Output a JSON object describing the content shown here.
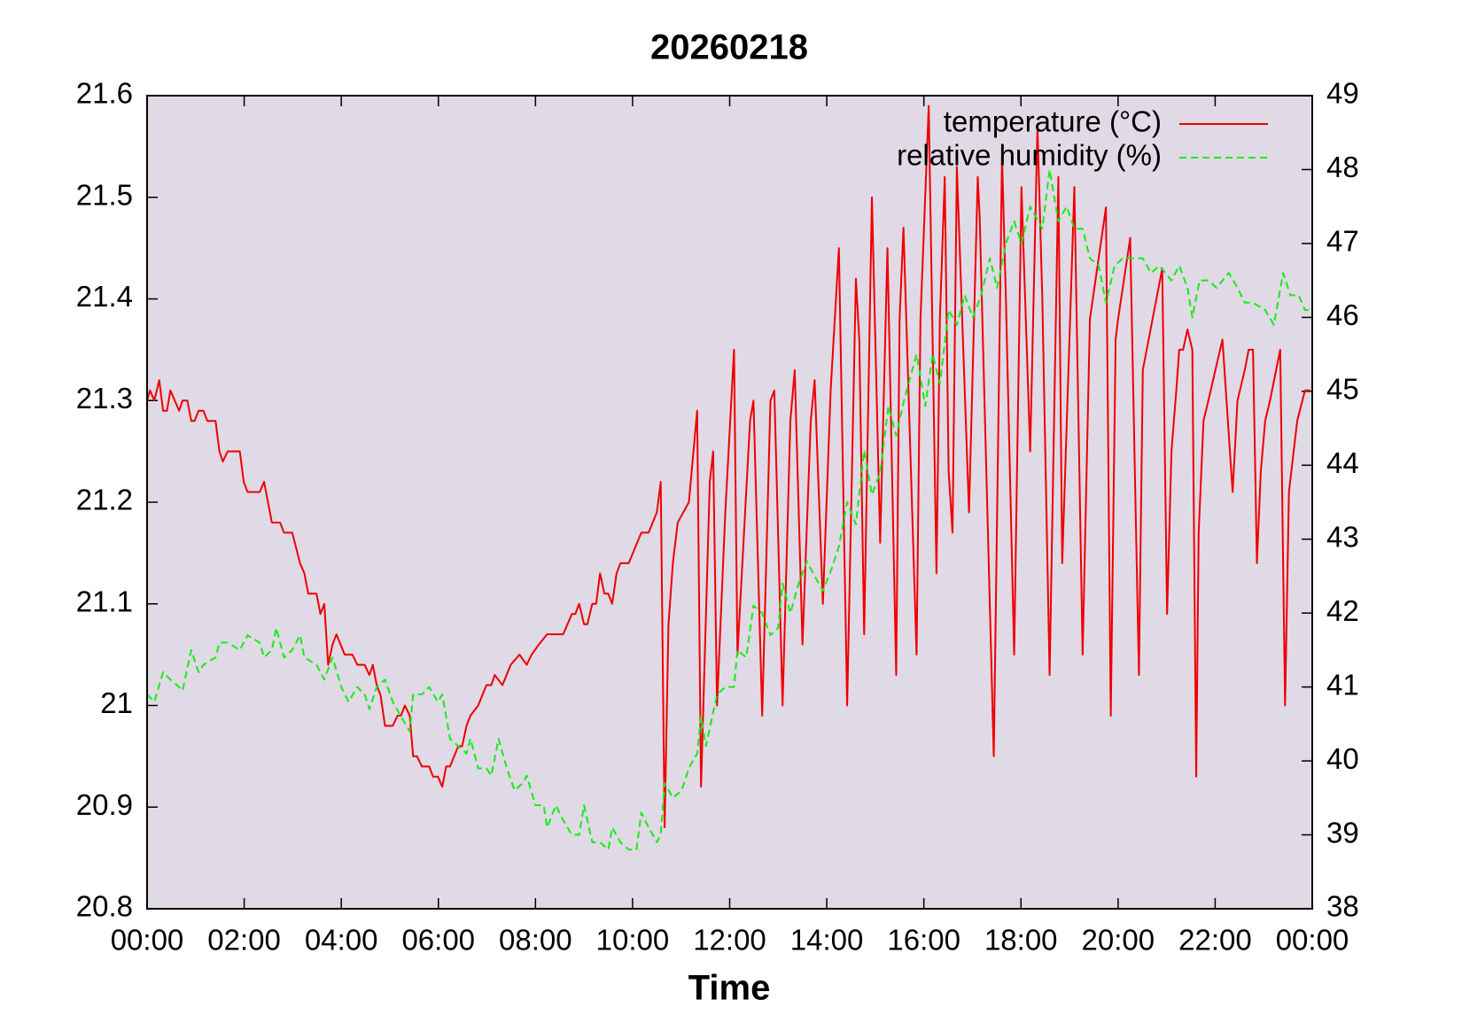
{
  "chart_data": {
    "type": "line",
    "title": "20260218",
    "xlabel": "Time",
    "xlim": [
      0,
      24
    ],
    "xticks": [
      {
        "value": 0,
        "label": "00:00"
      },
      {
        "value": 2,
        "label": "02:00"
      },
      {
        "value": 4,
        "label": "04:00"
      },
      {
        "value": 6,
        "label": "06:00"
      },
      {
        "value": 8,
        "label": "08:00"
      },
      {
        "value": 10,
        "label": "10:00"
      },
      {
        "value": 12,
        "label": "12:00"
      },
      {
        "value": 14,
        "label": "14:00"
      },
      {
        "value": 16,
        "label": "16:00"
      },
      {
        "value": 18,
        "label": "18:00"
      },
      {
        "value": 20,
        "label": "20:00"
      },
      {
        "value": 22,
        "label": "22:00"
      },
      {
        "value": 24,
        "label": "00:00"
      }
    ],
    "ylim": [
      20.8,
      21.6
    ],
    "yticks": [
      20.8,
      20.9,
      21,
      21.1,
      21.2,
      21.3,
      21.4,
      21.5,
      21.6
    ],
    "y2lim": [
      38,
      49
    ],
    "y2ticks": [
      38,
      39,
      40,
      41,
      42,
      43,
      44,
      45,
      46,
      47,
      48,
      49
    ],
    "grid": false,
    "legend": "upper right",
    "plot_background": "#e0d9e6",
    "series": [
      {
        "name": "temperature (°C)",
        "color": "#ee0000",
        "line_style": "solid",
        "axis": "y",
        "x": [
          0,
          0.06,
          0.15,
          0.25,
          0.33,
          0.41,
          0.48,
          0.66,
          0.73,
          0.83,
          0.91,
          0.98,
          1.06,
          1.16,
          1.24,
          1.41,
          1.49,
          1.56,
          1.66,
          1.91,
          1.99,
          2.07,
          2.32,
          2.41,
          2.57,
          2.74,
          2.82,
          2.99,
          3.15,
          3.24,
          3.32,
          3.49,
          3.57,
          3.65,
          3.73,
          3.82,
          3.9,
          4.07,
          4.23,
          4.33,
          4.48,
          4.58,
          4.65,
          4.73,
          4.81,
          4.9,
          5.06,
          5.16,
          5.23,
          5.31,
          5.41,
          5.48,
          5.56,
          5.66,
          5.81,
          5.89,
          5.99,
          6.08,
          6.16,
          6.24,
          6.41,
          6.49,
          6.58,
          6.66,
          6.82,
          6.99,
          7.09,
          7.16,
          7.32,
          7.49,
          7.67,
          7.82,
          7.92,
          8.07,
          8.24,
          8.57,
          8.75,
          8.82,
          8.9,
          9.0,
          9.07,
          9.17,
          9.25,
          9.33,
          9.42,
          9.5,
          9.58,
          9.67,
          9.75,
          9.92,
          10.18,
          10.33,
          10.5,
          10.58,
          10.66,
          10.74,
          10.83,
          10.93,
          11.16,
          11.33,
          11.41,
          11.59,
          11.66,
          11.74,
          11.91,
          12.09,
          12.16,
          12.42,
          12.49,
          12.67,
          12.84,
          12.92,
          13.09,
          13.25,
          13.34,
          13.5,
          13.67,
          13.75,
          13.92,
          14.08,
          14.25,
          14.42,
          14.6,
          14.67,
          14.77,
          14.93,
          15.1,
          15.25,
          15.43,
          15.5,
          15.58,
          15.85,
          15.93,
          16.1,
          16.26,
          16.33,
          16.43,
          16.51,
          16.59,
          16.68,
          16.93,
          17.11,
          17.15,
          17.44,
          17.61,
          17.69,
          17.86,
          18.01,
          18.19,
          18.34,
          18.44,
          18.59,
          18.77,
          18.85,
          19.1,
          19.27,
          19.42,
          19.75,
          19.85,
          19.95,
          20.0,
          20.25,
          20.43,
          20.51,
          20.91,
          21.01,
          21.1,
          21.2,
          21.26,
          21.34,
          21.43,
          21.53,
          21.61,
          21.66,
          21.76,
          21.86,
          22.15,
          22.36,
          22.46,
          22.61,
          22.69,
          22.78,
          22.86,
          22.94,
          23.03,
          23.13,
          23.34,
          23.44,
          23.52,
          23.69,
          23.85,
          23.96
        ],
        "values": [
          21.3,
          21.31,
          21.3,
          21.32,
          21.29,
          21.29,
          21.31,
          21.29,
          21.3,
          21.3,
          21.28,
          21.28,
          21.29,
          21.29,
          21.28,
          21.28,
          21.25,
          21.24,
          21.25,
          21.25,
          21.22,
          21.21,
          21.21,
          21.22,
          21.18,
          21.18,
          21.17,
          21.17,
          21.14,
          21.13,
          21.11,
          21.11,
          21.09,
          21.1,
          21.04,
          21.06,
          21.07,
          21.05,
          21.05,
          21.04,
          21.04,
          21.03,
          21.04,
          21.02,
          21.01,
          20.98,
          20.98,
          20.99,
          20.99,
          21.0,
          20.99,
          20.95,
          20.95,
          20.94,
          20.94,
          20.93,
          20.93,
          20.92,
          20.94,
          20.94,
          20.96,
          20.96,
          20.98,
          20.99,
          21.0,
          21.02,
          21.02,
          21.03,
          21.02,
          21.04,
          21.05,
          21.04,
          21.05,
          21.06,
          21.07,
          21.07,
          21.09,
          21.09,
          21.1,
          21.08,
          21.08,
          21.1,
          21.1,
          21.13,
          21.11,
          21.11,
          21.1,
          21.13,
          21.14,
          21.14,
          21.17,
          21.17,
          21.19,
          21.22,
          20.88,
          21.08,
          21.14,
          21.18,
          21.2,
          21.29,
          20.92,
          21.22,
          21.25,
          21.0,
          21.19,
          21.35,
          21.05,
          21.28,
          21.3,
          20.99,
          21.3,
          21.31,
          21.0,
          21.28,
          21.33,
          21.06,
          21.28,
          21.32,
          21.1,
          21.31,
          21.45,
          21.0,
          21.42,
          21.36,
          21.07,
          21.5,
          21.16,
          21.45,
          21.03,
          21.38,
          21.47,
          21.05,
          21.38,
          21.59,
          21.13,
          21.38,
          21.52,
          21.23,
          21.17,
          21.53,
          21.19,
          21.52,
          21.48,
          20.95,
          21.54,
          21.4,
          21.05,
          21.51,
          21.25,
          21.57,
          21.4,
          21.03,
          21.52,
          21.14,
          21.51,
          21.05,
          21.38,
          21.49,
          20.99,
          21.36,
          21.38,
          21.46,
          21.03,
          21.33,
          21.43,
          21.09,
          21.25,
          21.31,
          21.35,
          21.35,
          21.37,
          21.35,
          20.93,
          21.17,
          21.28,
          21.3,
          21.36,
          21.21,
          21.3,
          21.33,
          21.35,
          21.35,
          21.14,
          21.23,
          21.28,
          21.3,
          21.35,
          21.0,
          21.21,
          21.28,
          21.31,
          21.31
        ]
      },
      {
        "name": "relative humidity (%)",
        "color": "#11ee11",
        "line_style": "dashed",
        "axis": "y2",
        "x": [
          0,
          0.15,
          0.33,
          0.48,
          0.66,
          0.73,
          0.91,
          1.06,
          1.16,
          1.41,
          1.49,
          1.66,
          1.91,
          2.07,
          2.32,
          2.41,
          2.57,
          2.66,
          2.82,
          2.99,
          3.15,
          3.24,
          3.49,
          3.65,
          3.82,
          4.0,
          4.15,
          4.33,
          4.48,
          4.58,
          4.73,
          4.9,
          5.06,
          5.23,
          5.41,
          5.48,
          5.66,
          5.81,
          5.99,
          6.08,
          6.24,
          6.41,
          6.58,
          6.66,
          6.82,
          6.99,
          7.09,
          7.24,
          7.41,
          7.57,
          7.74,
          7.82,
          8.0,
          8.17,
          8.24,
          8.42,
          8.57,
          8.75,
          8.9,
          9.0,
          9.17,
          9.33,
          9.5,
          9.58,
          9.75,
          9.92,
          10.08,
          10.18,
          10.33,
          10.5,
          10.58,
          10.66,
          10.83,
          11.01,
          11.16,
          11.33,
          11.41,
          11.51,
          11.74,
          11.91,
          12.09,
          12.16,
          12.34,
          12.49,
          12.67,
          12.84,
          13.0,
          13.09,
          13.25,
          13.42,
          13.59,
          13.75,
          13.92,
          14.1,
          14.25,
          14.42,
          14.6,
          14.77,
          14.93,
          15.1,
          15.27,
          15.43,
          15.6,
          15.85,
          16.03,
          16.18,
          16.33,
          16.51,
          16.68,
          16.84,
          17.01,
          17.18,
          17.36,
          17.51,
          17.69,
          17.86,
          18.01,
          18.19,
          18.44,
          18.59,
          18.77,
          18.94,
          19.1,
          19.27,
          19.42,
          19.6,
          19.75,
          19.93,
          20.1,
          20.35,
          20.51,
          20.68,
          20.85,
          21.1,
          21.26,
          21.43,
          21.53,
          21.68,
          21.86,
          22.03,
          22.28,
          22.46,
          22.61,
          22.78,
          23.03,
          23.21,
          23.4,
          23.55,
          23.72,
          23.85,
          23.96
        ],
        "values": [
          40.9,
          40.8,
          41.2,
          41.1,
          41.0,
          40.95,
          41.5,
          41.2,
          41.3,
          41.4,
          41.6,
          41.6,
          41.5,
          41.7,
          41.6,
          41.4,
          41.5,
          41.8,
          41.4,
          41.5,
          41.7,
          41.4,
          41.3,
          41.1,
          41.4,
          41.0,
          40.8,
          41.0,
          40.9,
          40.7,
          41.0,
          41.1,
          40.8,
          40.6,
          40.4,
          40.9,
          40.9,
          41.0,
          40.8,
          40.9,
          40.3,
          40.2,
          40.1,
          40.3,
          39.9,
          39.9,
          39.8,
          40.3,
          39.9,
          39.6,
          39.7,
          39.8,
          39.4,
          39.4,
          39.1,
          39.4,
          39.2,
          39.0,
          39.0,
          39.4,
          38.9,
          38.9,
          38.8,
          39.1,
          38.9,
          38.8,
          38.8,
          39.3,
          39.1,
          38.9,
          39.0,
          39.7,
          39.5,
          39.6,
          39.9,
          40.1,
          40.6,
          40.2,
          40.9,
          41.0,
          41.0,
          41.5,
          41.4,
          42.1,
          42.0,
          41.7,
          41.8,
          42.4,
          42.0,
          42.4,
          42.7,
          42.5,
          42.3,
          42.6,
          42.9,
          43.5,
          43.2,
          44.2,
          43.6,
          43.9,
          44.8,
          44.4,
          44.9,
          45.5,
          44.8,
          45.5,
          45.1,
          46.1,
          45.9,
          46.3,
          46.0,
          46.3,
          46.8,
          46.4,
          47.0,
          47.3,
          47.0,
          47.5,
          47.2,
          48.0,
          47.3,
          47.5,
          47.2,
          47.2,
          46.8,
          46.7,
          46.2,
          46.7,
          46.8,
          46.8,
          46.8,
          46.6,
          46.7,
          46.5,
          46.7,
          46.4,
          46.0,
          46.5,
          46.5,
          46.4,
          46.6,
          46.4,
          46.2,
          46.2,
          46.1,
          45.9,
          46.6,
          46.3,
          46.3,
          46.1,
          46.1
        ]
      }
    ]
  }
}
